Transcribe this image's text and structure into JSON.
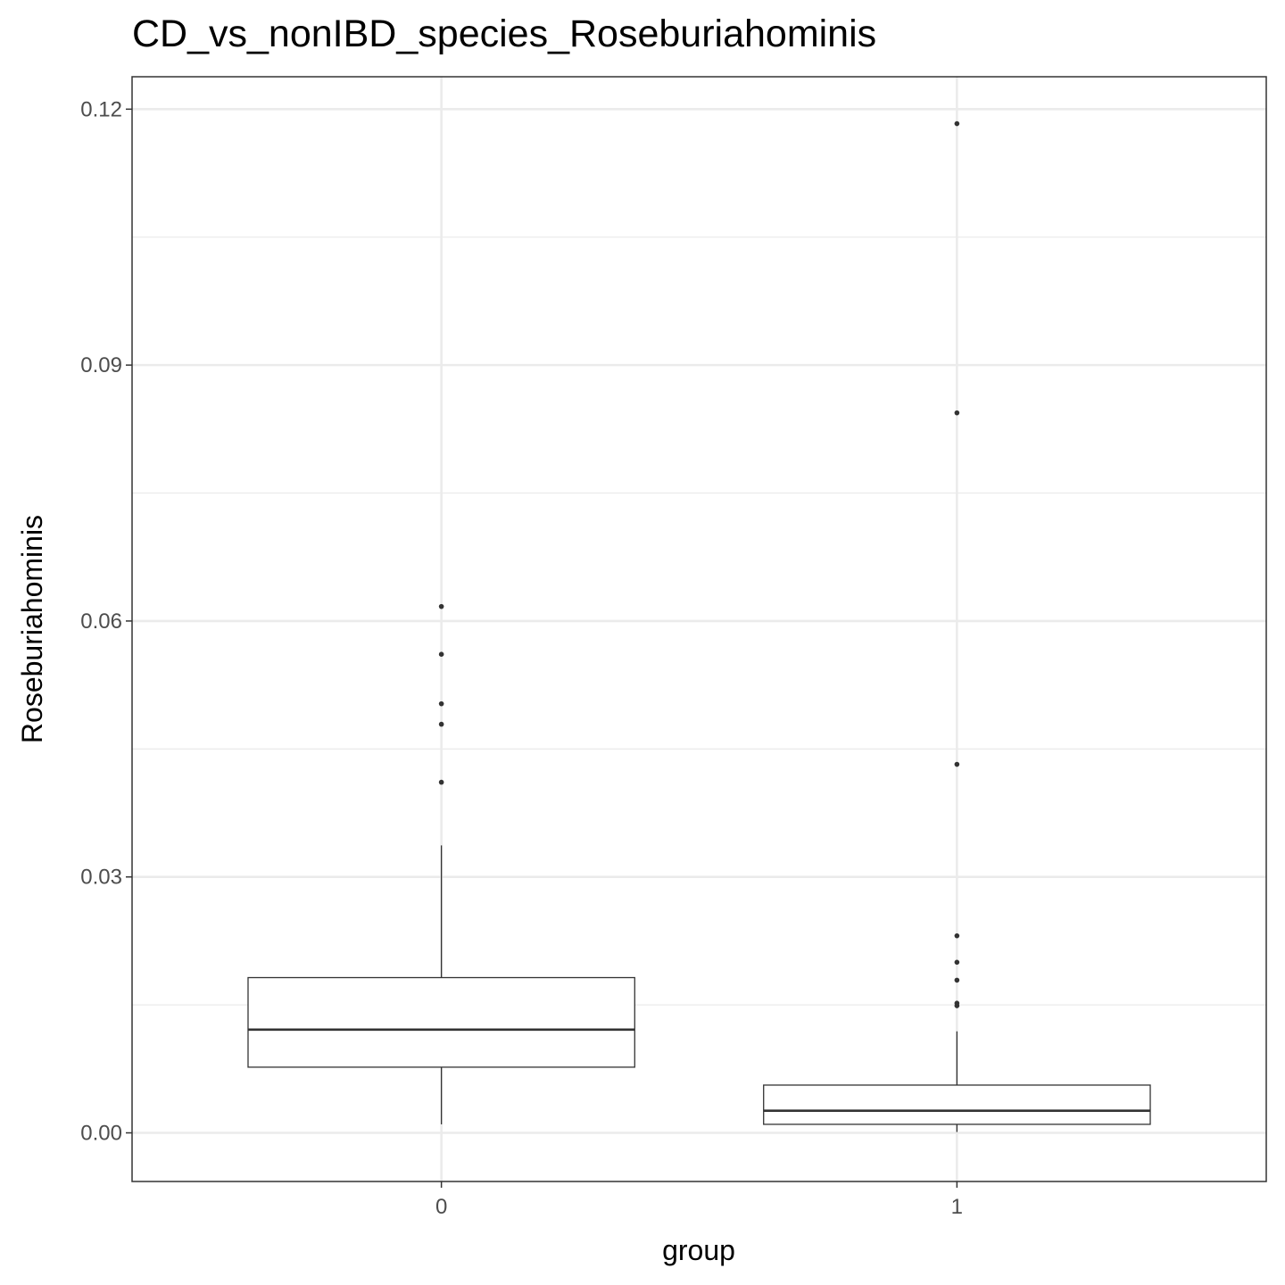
{
  "chart_data": {
    "type": "boxplot",
    "title": "CD_vs_nonIBD_species_Roseburiahominis",
    "xlabel": "group",
    "ylabel": "Roseburiahominis",
    "categories": [
      "0",
      "1"
    ],
    "ylim": [
      -0.0057,
      0.1238
    ],
    "yticks": [
      0.0,
      0.03,
      0.06,
      0.09,
      0.12
    ],
    "ytick_labels": [
      "0.00",
      "0.03",
      "0.06",
      "0.09",
      "0.12"
    ],
    "grid": true,
    "boxes": [
      {
        "category": "0",
        "whisker_low": 0.001,
        "q1": 0.0077,
        "median": 0.0121,
        "q3": 0.0182,
        "whisker_high": 0.0337,
        "outliers": [
          0.0617,
          0.0561,
          0.0503,
          0.0479,
          0.0411
        ]
      },
      {
        "category": "1",
        "whisker_low": 0.0001,
        "q1": 0.001,
        "median": 0.0026,
        "q3": 0.0056,
        "whisker_high": 0.0119,
        "outliers": [
          0.1183,
          0.0844,
          0.0432,
          0.0231,
          0.02,
          0.0179,
          0.0152,
          0.0149
        ]
      }
    ],
    "colors": {
      "panel_border": "#333333",
      "grid": "#ebebeb",
      "box_stroke": "#333333",
      "box_fill": "#ffffff",
      "point": "#333333"
    }
  }
}
